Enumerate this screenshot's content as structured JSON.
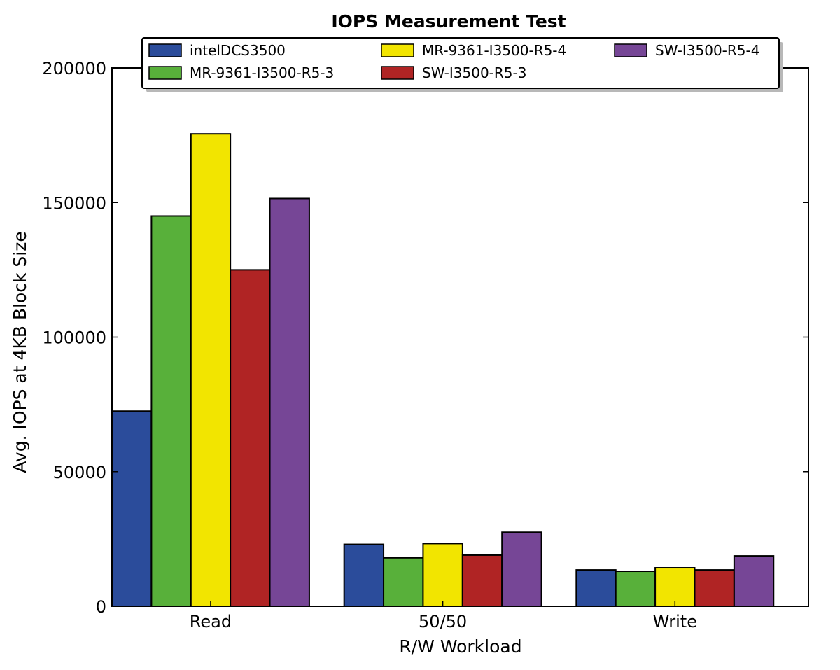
{
  "chart_data": {
    "type": "bar",
    "title": "IOPS Measurement Test",
    "xlabel": "R/W Workload",
    "ylabel": "Avg. IOPS at 4KB Block Size",
    "categories": [
      "Read",
      "50/50",
      "Write"
    ],
    "ylim": [
      0,
      200000
    ],
    "yticks": [
      0,
      50000,
      100000,
      150000,
      200000
    ],
    "ytick_labels": [
      "0",
      "50000",
      "100000",
      "150000",
      "200000"
    ],
    "grid": false,
    "legend_position": "top",
    "series": [
      {
        "name": "intelDCS3500",
        "color": "#2b4c9b",
        "values": [
          72500,
          23000,
          13500
        ]
      },
      {
        "name": "MR-9361-I3500-R5-3",
        "color": "#58b03a",
        "values": [
          145000,
          18000,
          13000
        ]
      },
      {
        "name": "MR-9361-I3500-R5-4",
        "color": "#f2e500",
        "values": [
          175500,
          23300,
          14300
        ]
      },
      {
        "name": "SW-I3500-R5-3",
        "color": "#b02424",
        "values": [
          125000,
          19000,
          13500
        ]
      },
      {
        "name": "SW-I3500-R5-4",
        "color": "#764696",
        "values": [
          151500,
          27500,
          18700
        ]
      }
    ]
  }
}
